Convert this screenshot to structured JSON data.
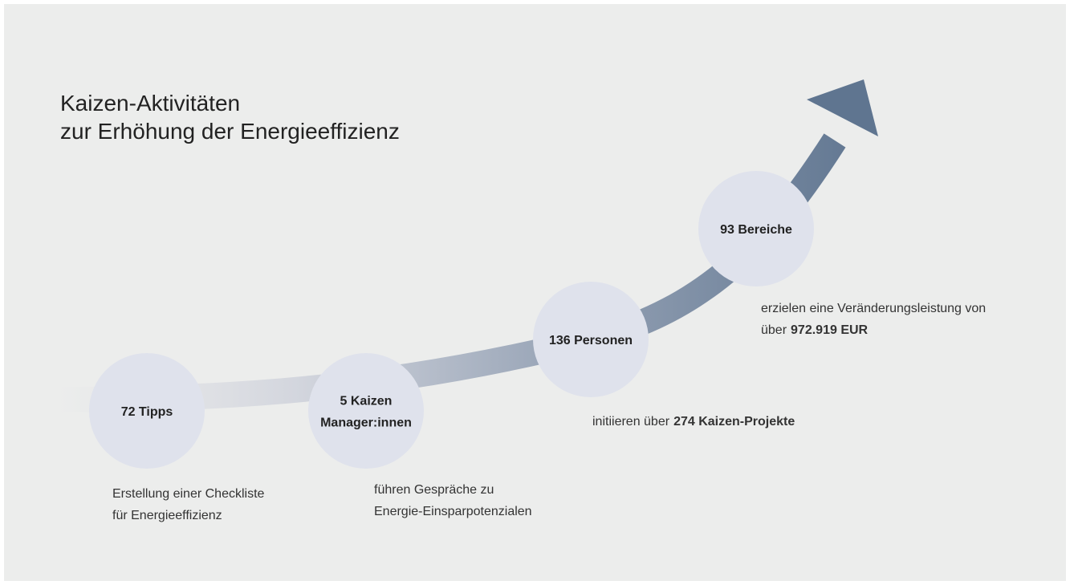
{
  "title": [
    "Kaizen-Aktivitäten",
    "zur Erhöhung der Energieeffizienz"
  ],
  "steps": [
    {
      "label": [
        "72 Tipps"
      ],
      "description": [
        {
          "text": "Erstellung einer Checkliste"
        },
        {
          "text": "für Energieeffizienz"
        }
      ]
    },
    {
      "label": [
        "5 Kaizen",
        "Manager:innen"
      ],
      "description": [
        {
          "text": "führen Gespräche zu"
        },
        {
          "text": "Energie-Einsparpotenzialen"
        }
      ]
    },
    {
      "label": [
        "136 Personen"
      ],
      "description": [
        {
          "text": "initiieren über",
          "highlight": "274 Kaizen-Projekte"
        }
      ]
    },
    {
      "label": [
        "93 Bereiche"
      ],
      "description": [
        {
          "text": "erzielen eine Veränderungsleistung von"
        },
        {
          "text": "über",
          "highlight": "972.919 EUR"
        }
      ]
    }
  ]
}
